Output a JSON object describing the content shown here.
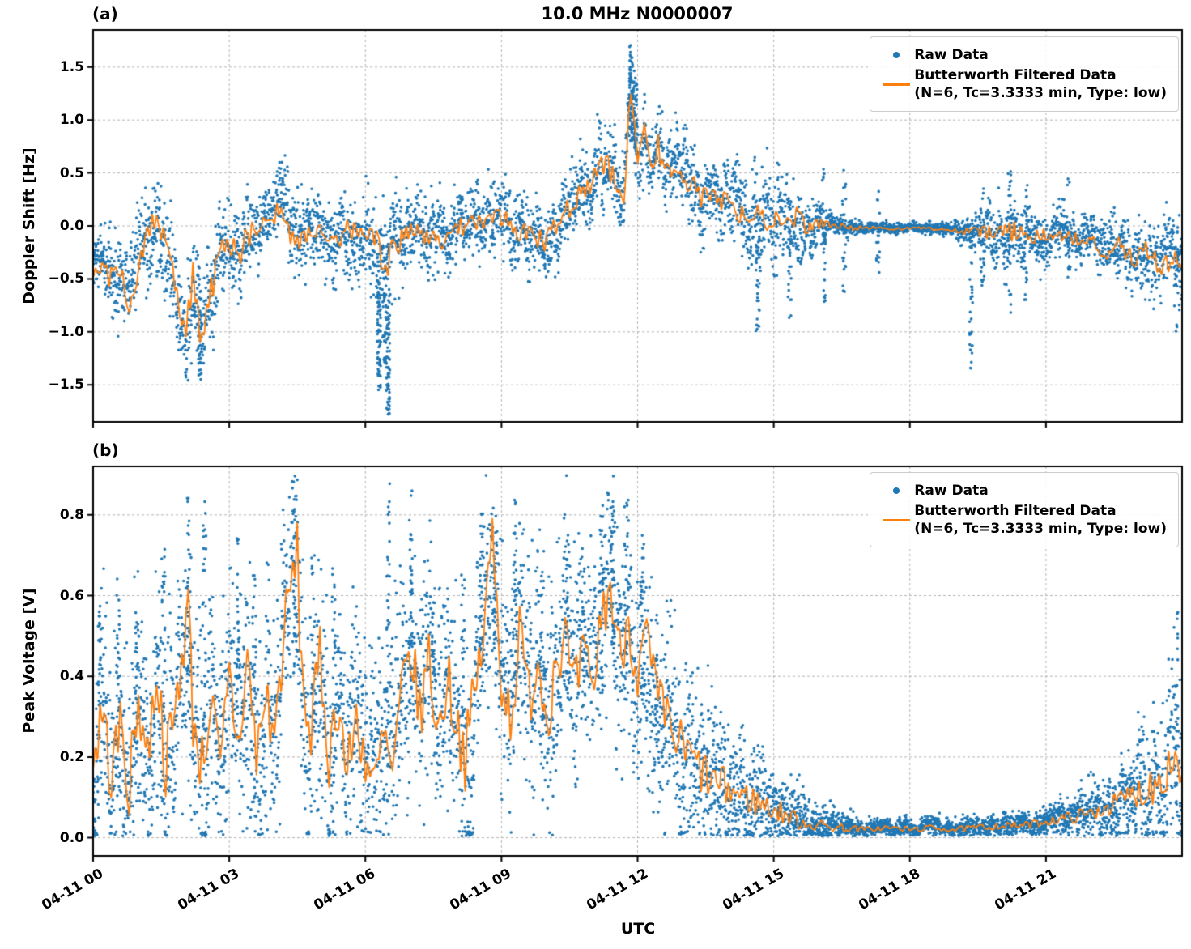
{
  "figure": {
    "title": "10.0 MHz N0000007",
    "xlabel": "UTC",
    "colors": {
      "raw": "#1f77b4",
      "filtered": "#ff7f0e",
      "grid": "#b3b3b3",
      "axis": "#000000",
      "legend_border": "#cccccc"
    },
    "legend": {
      "position": "upper right",
      "raw": "Raw Data",
      "filtered_line1": "Butterworth Filtered Data",
      "filtered_line2": "(N=6, Tc=3.3333 min, Type: low)"
    }
  },
  "chart_data": [
    {
      "type": "scatter",
      "panel_label": "(a)",
      "title": "10.0 MHz N0000007",
      "ylabel": "Doppler Shift [Hz]",
      "xlabel": "UTC",
      "grid": true,
      "legend_position": "upper right",
      "ylim": [
        -1.85,
        1.85
      ],
      "yticks": [
        {
          "v": -1.5,
          "label": "−1.5"
        },
        {
          "v": -1.0,
          "label": "−1.0"
        },
        {
          "v": -0.5,
          "label": "−0.5"
        },
        {
          "v": 0.0,
          "label": "0.0"
        },
        {
          "v": 0.5,
          "label": "0.5"
        },
        {
          "v": 1.0,
          "label": "1.0"
        },
        {
          "v": 1.5,
          "label": "1.5"
        }
      ],
      "xlim_hours": [
        0,
        24
      ],
      "show_x_tick_labels": false,
      "xticks": [
        {
          "hour": 0,
          "label": "04-11 00"
        },
        {
          "hour": 3,
          "label": "04-11 03"
        },
        {
          "hour": 6,
          "label": "04-11 06"
        },
        {
          "hour": 9,
          "label": "04-11 09"
        },
        {
          "hour": 12,
          "label": "04-11 12"
        },
        {
          "hour": 15,
          "label": "04-11 15"
        },
        {
          "hour": 18,
          "label": "04-11 18"
        },
        {
          "hour": 21,
          "label": "04-11 21"
        }
      ],
      "series": [
        {
          "name": "Raw Data",
          "style": "scatter",
          "color": "#1f77b4"
        },
        {
          "name": "Butterworth Filtered Data (N=6, Tc=3.3333 min, Type: low)",
          "style": "line",
          "color": "#ff7f0e"
        }
      ],
      "filtered_line": {
        "x_hours": [
          0,
          0.2,
          0.4,
          0.6,
          0.8,
          1.0,
          1.2,
          1.4,
          1.6,
          1.8,
          2.0,
          2.2,
          2.4,
          2.6,
          2.8,
          3.0,
          3.2,
          3.4,
          3.6,
          3.8,
          4.0,
          4.15,
          4.3,
          4.5,
          4.7,
          5.0,
          5.3,
          5.6,
          5.9,
          6.2,
          6.45,
          6.7,
          7.0,
          7.3,
          7.6,
          7.9,
          8.2,
          8.5,
          8.8,
          9.1,
          9.4,
          9.7,
          10.0,
          10.3,
          10.6,
          10.9,
          11.1,
          11.3,
          11.5,
          11.7,
          11.85,
          12.0,
          12.15,
          12.3,
          12.45,
          12.6,
          12.8,
          13.0,
          13.2,
          13.4,
          13.6,
          13.8,
          14.0,
          14.2,
          14.5,
          14.8,
          15.1,
          15.4,
          15.7,
          16.0,
          16.4,
          16.8,
          17.2,
          17.6,
          18.0,
          18.4,
          18.8,
          19.2,
          19.6,
          20.0,
          20.4,
          20.8,
          21.2,
          21.6,
          22.0,
          22.3,
          22.6,
          22.9,
          23.2,
          23.5,
          23.8,
          24.0
        ],
        "y": [
          -0.45,
          -0.35,
          -0.5,
          -0.45,
          -0.7,
          -0.45,
          -0.1,
          0.1,
          -0.1,
          -0.5,
          -1.05,
          -0.5,
          -1.15,
          -0.6,
          -0.25,
          -0.15,
          -0.3,
          -0.1,
          0.0,
          0.05,
          0.1,
          0.25,
          -0.05,
          -0.15,
          -0.05,
          -0.05,
          -0.15,
          -0.05,
          -0.1,
          -0.15,
          -0.35,
          -0.15,
          -0.05,
          -0.1,
          -0.15,
          -0.05,
          0.0,
          0.05,
          0.1,
          0.05,
          -0.05,
          -0.1,
          -0.15,
          0.05,
          0.25,
          0.35,
          0.5,
          0.6,
          0.4,
          0.3,
          1.3,
          0.55,
          0.95,
          0.5,
          0.8,
          0.45,
          0.6,
          0.4,
          0.45,
          0.25,
          0.3,
          0.2,
          0.3,
          0.15,
          0.05,
          0.1,
          0.0,
          0.08,
          0.0,
          0.03,
          0.0,
          -0.02,
          -0.02,
          -0.03,
          -0.02,
          -0.03,
          -0.04,
          -0.05,
          -0.05,
          -0.08,
          -0.05,
          -0.1,
          -0.07,
          -0.12,
          -0.1,
          -0.28,
          -0.18,
          -0.32,
          -0.22,
          -0.38,
          -0.3,
          -0.4
        ]
      },
      "scatter_spread": {
        "x_hours": [
          0,
          1,
          2,
          2.6,
          3,
          4,
          5,
          6,
          6.45,
          7,
          8,
          9,
          10,
          11,
          11.85,
          12.5,
          13,
          14,
          14.8,
          15.5,
          16.2,
          17,
          18,
          19,
          19.6,
          20.2,
          21,
          22,
          23,
          24
        ],
        "halfwidth": [
          0.3,
          0.4,
          0.45,
          0.45,
          0.35,
          0.3,
          0.3,
          0.33,
          0.5,
          0.3,
          0.28,
          0.3,
          0.3,
          0.3,
          0.35,
          0.3,
          0.3,
          0.3,
          0.4,
          0.35,
          0.1,
          0.05,
          0.04,
          0.06,
          0.2,
          0.3,
          0.2,
          0.2,
          0.25,
          0.35
        ]
      },
      "outlier_streaks": [
        {
          "x": 2.35,
          "y0": -1.45,
          "y1": -0.8,
          "n": 35
        },
        {
          "x": 6.3,
          "y0": -1.55,
          "y1": -0.5,
          "n": 70
        },
        {
          "x": 6.42,
          "y0": -1.3,
          "y1": -0.4,
          "n": 40
        },
        {
          "x": 6.5,
          "y0": -1.78,
          "y1": -0.7,
          "n": 70
        },
        {
          "x": 11.85,
          "y0": 0.8,
          "y1": 1.72,
          "n": 60
        },
        {
          "x": 11.95,
          "y0": 0.7,
          "y1": 1.5,
          "n": 40
        },
        {
          "x": 14.65,
          "y0": -1.05,
          "y1": -0.1,
          "n": 30
        },
        {
          "x": 15.35,
          "y0": -0.9,
          "y1": 0.3,
          "n": 25
        },
        {
          "x": 16.1,
          "y0": -0.75,
          "y1": 0.55,
          "n": 30
        },
        {
          "x": 16.55,
          "y0": -0.65,
          "y1": 0.55,
          "n": 25
        },
        {
          "x": 17.3,
          "y0": -0.5,
          "y1": 0.4,
          "n": 15
        },
        {
          "x": 19.35,
          "y0": -1.35,
          "y1": 0.0,
          "n": 30
        },
        {
          "x": 19.6,
          "y0": -0.6,
          "y1": 0.45,
          "n": 20
        },
        {
          "x": 20.2,
          "y0": -0.85,
          "y1": 0.55,
          "n": 30
        },
        {
          "x": 20.55,
          "y0": -0.7,
          "y1": 0.5,
          "n": 20
        },
        {
          "x": 21.5,
          "y0": -0.5,
          "y1": 0.45,
          "n": 15
        },
        {
          "x": 23.9,
          "y0": -1.0,
          "y1": 0.2,
          "n": 20
        }
      ],
      "render": {
        "seed": 20240411,
        "points": 5200,
        "dot_radius": 1.8,
        "band_wiggle": 0.5,
        "noise": 0.55,
        "line_wiggle": 0.35,
        "clamp_min": null
      }
    },
    {
      "type": "scatter",
      "panel_label": "(b)",
      "ylabel": "Peak Voltage [V]",
      "xlabel": "UTC",
      "grid": true,
      "legend_position": "upper right",
      "ylim": [
        -0.045,
        0.92
      ],
      "yticks": [
        {
          "v": 0.0,
          "label": "0.0"
        },
        {
          "v": 0.2,
          "label": "0.2"
        },
        {
          "v": 0.4,
          "label": "0.4"
        },
        {
          "v": 0.6,
          "label": "0.6"
        },
        {
          "v": 0.8,
          "label": "0.8"
        }
      ],
      "xlim_hours": [
        0,
        24
      ],
      "show_x_tick_labels": true,
      "xticks": [
        {
          "hour": 0,
          "label": "04-11 00"
        },
        {
          "hour": 3,
          "label": "04-11 03"
        },
        {
          "hour": 6,
          "label": "04-11 06"
        },
        {
          "hour": 9,
          "label": "04-11 09"
        },
        {
          "hour": 12,
          "label": "04-11 12"
        },
        {
          "hour": 15,
          "label": "04-11 15"
        },
        {
          "hour": 18,
          "label": "04-11 18"
        },
        {
          "hour": 21,
          "label": "04-11 21"
        }
      ],
      "series": [
        {
          "name": "Raw Data",
          "style": "scatter",
          "color": "#1f77b4"
        },
        {
          "name": "Butterworth Filtered Data (N=6, Tc=3.3333 min, Type: low)",
          "style": "line",
          "color": "#ff7f0e"
        }
      ],
      "filtered_line": {
        "x_hours": [
          0,
          0.2,
          0.4,
          0.6,
          0.8,
          1.0,
          1.2,
          1.4,
          1.6,
          1.8,
          2.0,
          2.1,
          2.2,
          2.4,
          2.6,
          2.8,
          3.0,
          3.2,
          3.4,
          3.6,
          3.8,
          4.0,
          4.2,
          4.4,
          4.5,
          4.6,
          4.8,
          5.0,
          5.2,
          5.4,
          5.6,
          5.8,
          6.0,
          6.2,
          6.4,
          6.6,
          6.8,
          7.0,
          7.2,
          7.4,
          7.6,
          7.8,
          8.0,
          8.2,
          8.4,
          8.6,
          8.8,
          9.0,
          9.2,
          9.4,
          9.6,
          9.8,
          10.0,
          10.2,
          10.4,
          10.6,
          10.8,
          11.0,
          11.2,
          11.4,
          11.6,
          11.8,
          12.0,
          12.2,
          12.4,
          12.6,
          12.8,
          13.0,
          13.3,
          13.6,
          14.0,
          14.4,
          14.8,
          15.2,
          15.6,
          16.0,
          16.5,
          17.0,
          17.5,
          18.0,
          18.5,
          19.0,
          19.5,
          20.0,
          20.5,
          21.0,
          21.5,
          22.0,
          22.4,
          22.8,
          23.2,
          23.5,
          23.8,
          24.0
        ],
        "y": [
          0.18,
          0.32,
          0.15,
          0.28,
          0.12,
          0.35,
          0.2,
          0.42,
          0.18,
          0.3,
          0.5,
          0.58,
          0.3,
          0.18,
          0.35,
          0.15,
          0.4,
          0.22,
          0.45,
          0.2,
          0.35,
          0.25,
          0.5,
          0.65,
          0.7,
          0.4,
          0.25,
          0.45,
          0.2,
          0.35,
          0.15,
          0.3,
          0.2,
          0.12,
          0.25,
          0.15,
          0.35,
          0.47,
          0.3,
          0.45,
          0.25,
          0.4,
          0.3,
          0.2,
          0.35,
          0.5,
          0.75,
          0.4,
          0.3,
          0.5,
          0.35,
          0.45,
          0.3,
          0.45,
          0.5,
          0.35,
          0.45,
          0.35,
          0.55,
          0.62,
          0.45,
          0.55,
          0.4,
          0.5,
          0.35,
          0.3,
          0.25,
          0.22,
          0.18,
          0.14,
          0.12,
          0.1,
          0.08,
          0.06,
          0.04,
          0.03,
          0.025,
          0.02,
          0.025,
          0.02,
          0.025,
          0.02,
          0.025,
          0.03,
          0.03,
          0.04,
          0.05,
          0.06,
          0.08,
          0.1,
          0.12,
          0.15,
          0.2,
          0.16
        ]
      },
      "scatter_spread": {
        "x_hours": [
          0,
          2,
          4,
          6,
          8,
          10,
          12,
          13,
          13.5,
          14,
          15,
          16,
          17,
          18,
          19,
          20,
          21,
          22,
          22.5,
          23,
          23.5,
          24
        ],
        "halfwidth": [
          0.16,
          0.17,
          0.17,
          0.16,
          0.17,
          0.17,
          0.16,
          0.14,
          0.12,
          0.1,
          0.06,
          0.03,
          0.015,
          0.015,
          0.015,
          0.018,
          0.02,
          0.04,
          0.05,
          0.08,
          0.12,
          0.15
        ]
      },
      "outlier_streaks": [
        {
          "x": 0.15,
          "y0": 0.3,
          "y1": 0.6,
          "n": 20
        },
        {
          "x": 0.55,
          "y0": 0.3,
          "y1": 0.7,
          "n": 25
        },
        {
          "x": 0.95,
          "y0": 0.3,
          "y1": 0.66,
          "n": 20
        },
        {
          "x": 1.55,
          "y0": 0.3,
          "y1": 0.72,
          "n": 25
        },
        {
          "x": 2.1,
          "y0": 0.4,
          "y1": 0.85,
          "n": 30
        },
        {
          "x": 2.45,
          "y0": 0.3,
          "y1": 0.84,
          "n": 25
        },
        {
          "x": 3.2,
          "y0": 0.3,
          "y1": 0.76,
          "n": 25
        },
        {
          "x": 3.55,
          "y0": 0.3,
          "y1": 0.66,
          "n": 20
        },
        {
          "x": 4.45,
          "y0": 0.4,
          "y1": 0.85,
          "n": 30
        },
        {
          "x": 4.85,
          "y0": 0.3,
          "y1": 0.7,
          "n": 20
        },
        {
          "x": 5.3,
          "y0": 0.3,
          "y1": 0.68,
          "n": 20
        },
        {
          "x": 6.5,
          "y0": 0.3,
          "y1": 0.88,
          "n": 30
        },
        {
          "x": 7.0,
          "y0": 0.35,
          "y1": 0.86,
          "n": 30
        },
        {
          "x": 7.5,
          "y0": 0.3,
          "y1": 0.62,
          "n": 20
        },
        {
          "x": 8.15,
          "y0": 0.3,
          "y1": 0.7,
          "n": 20
        },
        {
          "x": 8.55,
          "y0": 0.35,
          "y1": 0.82,
          "n": 25
        },
        {
          "x": 8.85,
          "y0": 0.4,
          "y1": 0.76,
          "n": 25
        },
        {
          "x": 9.3,
          "y0": 0.35,
          "y1": 0.85,
          "n": 30
        },
        {
          "x": 9.9,
          "y0": 0.3,
          "y1": 0.66,
          "n": 20
        },
        {
          "x": 10.45,
          "y0": 0.35,
          "y1": 0.75,
          "n": 25
        },
        {
          "x": 10.8,
          "y0": 0.3,
          "y1": 0.73,
          "n": 20
        },
        {
          "x": 11.2,
          "y0": 0.35,
          "y1": 0.8,
          "n": 25
        },
        {
          "x": 11.45,
          "y0": 0.4,
          "y1": 0.86,
          "n": 30
        },
        {
          "x": 11.75,
          "y0": 0.35,
          "y1": 0.83,
          "n": 25
        },
        {
          "x": 12.1,
          "y0": 0.3,
          "y1": 0.75,
          "n": 25
        },
        {
          "x": 12.4,
          "y0": 0.25,
          "y1": 0.56,
          "n": 15
        },
        {
          "x": 23.9,
          "y0": 0.2,
          "y1": 0.56,
          "n": 15
        }
      ],
      "render": {
        "seed": 7,
        "points": 6000,
        "dot_radius": 1.8,
        "band_wiggle": 0.6,
        "noise": 0.8,
        "line_wiggle": 0.5,
        "clamp_min": 0.004
      }
    }
  ]
}
